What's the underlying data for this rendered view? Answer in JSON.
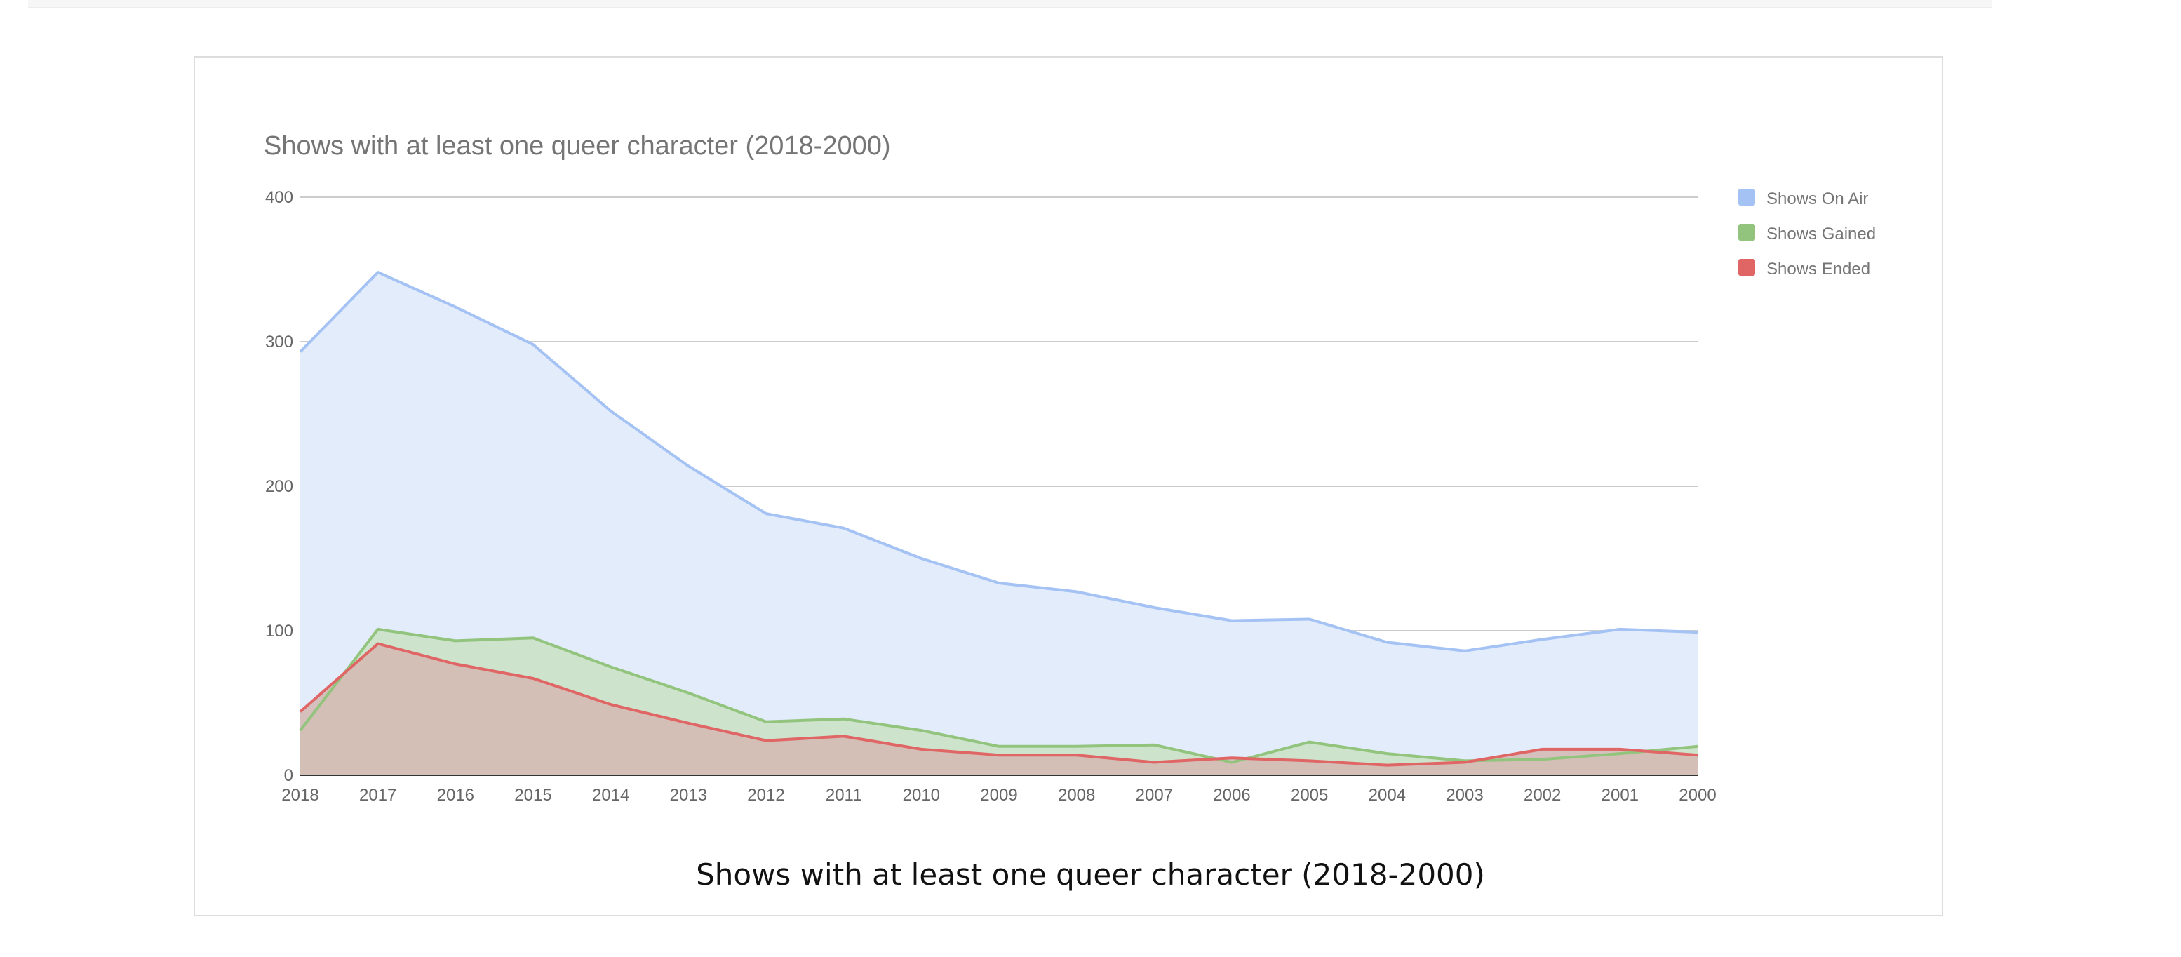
{
  "figure": {
    "caption": "Shows with at least one queer character (2018-2000)"
  },
  "chart_data": {
    "type": "area",
    "title": "Shows with at least one queer character (2018-2000)",
    "xlabel": "",
    "ylabel": "",
    "ylim": [
      0,
      400
    ],
    "yticks": [
      "0",
      "100",
      "200",
      "300",
      "400"
    ],
    "grid": true,
    "legend_position": "right",
    "categories": [
      "2018",
      "2017",
      "2016",
      "2015",
      "2014",
      "2013",
      "2012",
      "2011",
      "2010",
      "2009",
      "2008",
      "2007",
      "2006",
      "2005",
      "2004",
      "2003",
      "2002",
      "2001",
      "2000"
    ],
    "series": [
      {
        "name": "Shows On Air",
        "color": "#a4c2f4",
        "fill": "#e3ecfb",
        "values": [
          293,
          348,
          324,
          298,
          252,
          214,
          181,
          171,
          150,
          133,
          127,
          116,
          107,
          108,
          92,
          86,
          94,
          101,
          99
        ]
      },
      {
        "name": "Shows Gained",
        "color": "#93c47d",
        "fill": "#c9e2c3",
        "values": [
          31,
          101,
          93,
          95,
          75,
          57,
          37,
          39,
          31,
          20,
          20,
          21,
          9,
          23,
          15,
          10,
          11,
          15,
          20
        ]
      },
      {
        "name": "Shows Ended",
        "color": "#e06666",
        "fill": "#d3b9b2",
        "values": [
          44,
          91,
          77,
          67,
          49,
          36,
          24,
          27,
          18,
          14,
          14,
          9,
          12,
          10,
          7,
          9,
          18,
          18,
          14
        ]
      }
    ]
  }
}
